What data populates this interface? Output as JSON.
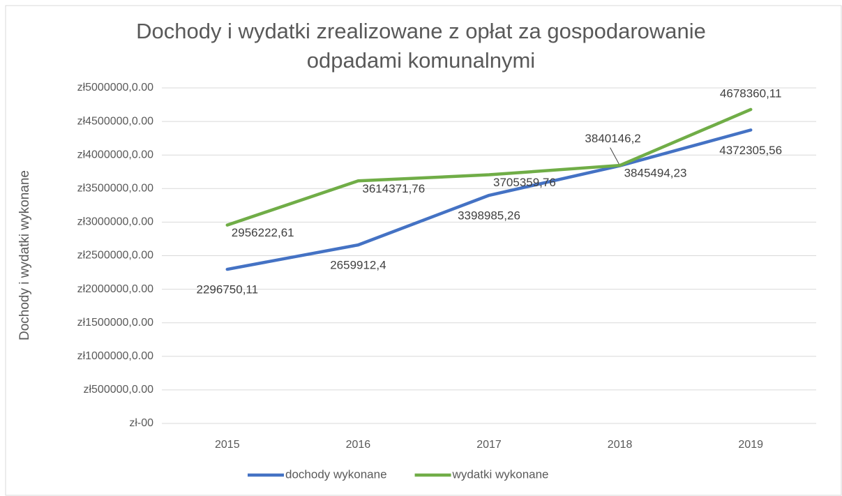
{
  "chart_data": {
    "type": "line",
    "title": "Dochody i wydatki zrealizowane z opłat za gospodarowanie odpadami komunalnymi",
    "y_label": "Dochody i wydatki wykonane",
    "categories": [
      "2015",
      "2016",
      "2017",
      "2018",
      "2019"
    ],
    "series": [
      {
        "name": "dochody wykonane",
        "color": "#4472c4",
        "values": [
          2296750.11,
          2659912.4,
          3398985.26,
          3840146.2,
          4372305.56
        ],
        "value_labels": [
          "2296750,11",
          "2659912,4",
          "3398985,26",
          "3840146,2",
          "4372305,56"
        ]
      },
      {
        "name": "wydatki wykonane",
        "color": "#70ad47",
        "values": [
          2956222.61,
          3614371.76,
          3705359.76,
          3845494.23,
          4678360.11
        ],
        "value_labels": [
          "2956222,61",
          "3614371,76",
          "3705359,76",
          "3845494,23",
          "4678360,11"
        ]
      }
    ],
    "ylim": [
      0,
      5000000
    ],
    "yticks": [
      {
        "value": 0,
        "label": "zł-00"
      },
      {
        "value": 500000,
        "label": "zł500000,0.00"
      },
      {
        "value": 1000000,
        "label": "zł1000000,0.00"
      },
      {
        "value": 1500000,
        "label": "zł1500000,0.00"
      },
      {
        "value": 2000000,
        "label": "zł2000000,0.00"
      },
      {
        "value": 2500000,
        "label": "zł2500000,0.00"
      },
      {
        "value": 3000000,
        "label": "zł3000000,0.00"
      },
      {
        "value": 3500000,
        "label": "zł3500000,0.00"
      },
      {
        "value": 4000000,
        "label": "zł4000000,0.00"
      },
      {
        "value": 4500000,
        "label": "zł4500000,0.00"
      },
      {
        "value": 5000000,
        "label": "zł5000000,0.00"
      }
    ],
    "grid": true,
    "legend": "bottom"
  }
}
